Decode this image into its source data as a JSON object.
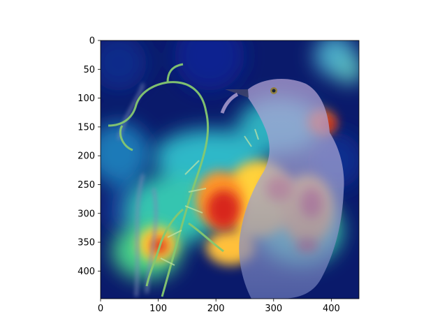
{
  "figure": {
    "x_axis": {
      "ticks": [
        "0",
        "100",
        "200",
        "300",
        "400"
      ],
      "tick_values": [
        0,
        100,
        200,
        300,
        400
      ],
      "range": [
        0,
        448
      ]
    },
    "y_axis": {
      "ticks": [
        "0",
        "50",
        "100",
        "150",
        "200",
        "250",
        "300",
        "350",
        "400"
      ],
      "tick_values": [
        0,
        50,
        100,
        150,
        200,
        250,
        300,
        350,
        400
      ],
      "range": [
        0,
        448
      ]
    },
    "image": {
      "subject": "bird holding insect in beak beside curled plant tendrils",
      "overlay": "jet colormap heatmap",
      "colors": {
        "background_navy": "#0a1a6b",
        "bird_lavender": "#b9a6d8",
        "tendril_green": "#86c870",
        "heat_red": "#d8281a",
        "heat_yellow": "#ffd23a",
        "heat_cyan": "#2fd6d0"
      }
    }
  }
}
